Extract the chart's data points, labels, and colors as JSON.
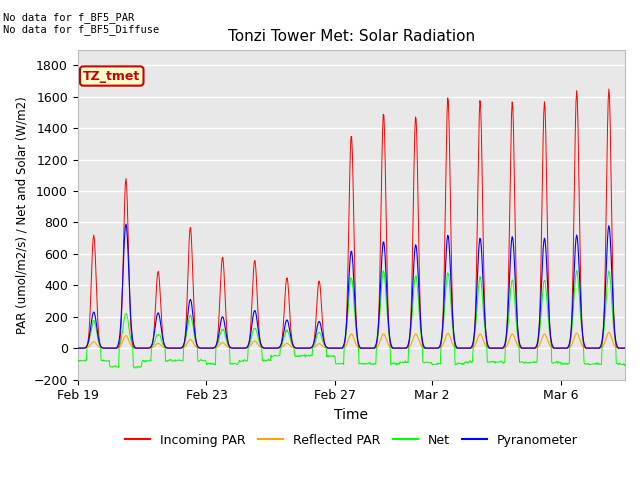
{
  "title": "Tonzi Tower Met: Solar Radiation",
  "xlabel": "Time",
  "ylabel": "PAR (umol/m2/s) / Net and Solar (W/m2)",
  "ylim": [
    -200,
    1900
  ],
  "yticks": [
    -200,
    0,
    200,
    400,
    600,
    800,
    1000,
    1200,
    1400,
    1600,
    1800
  ],
  "text_top_left": "No data for f_BF5_PAR\nNo data for f_BF5_Diffuse",
  "legend_label_box": "TZ_tmet",
  "legend_entries": [
    "Incoming PAR",
    "Reflected PAR",
    "Net",
    "Pyranometer"
  ],
  "line_colors": [
    "red",
    "orange",
    "lime",
    "blue"
  ],
  "background_color": "#e8e8e8",
  "grid_color": "white",
  "xtick_labels": [
    "Feb 19",
    "Feb 23",
    "Feb 27",
    "Mar 2",
    "Mar 6"
  ],
  "n_days": 17,
  "incoming_peaks": [
    720,
    1080,
    490,
    770,
    580,
    560,
    450,
    430,
    1360,
    1500,
    1480,
    1600,
    1580,
    1570,
    1570,
    1640,
    1650
  ],
  "pyranometer_peaks": [
    230,
    790,
    225,
    310,
    200,
    240,
    180,
    170,
    620,
    680,
    660,
    720,
    700,
    710,
    700,
    720,
    780
  ],
  "reflected_peaks": [
    40,
    80,
    30,
    55,
    35,
    45,
    30,
    28,
    90,
    90,
    90,
    95,
    90,
    90,
    90,
    95,
    100
  ],
  "net_peaks": [
    170,
    220,
    90,
    210,
    120,
    130,
    110,
    100,
    450,
    490,
    460,
    480,
    450,
    430,
    430,
    490,
    490
  ],
  "net_troughs": [
    -80,
    -120,
    -80,
    -80,
    -100,
    -80,
    -50,
    -50,
    -100,
    -100,
    -90,
    -100,
    -90,
    -90,
    -90,
    -100,
    -100
  ],
  "box_color": "#ffffcc",
  "box_edge_color": "#cc0000",
  "box_text_color": "#cc0000"
}
